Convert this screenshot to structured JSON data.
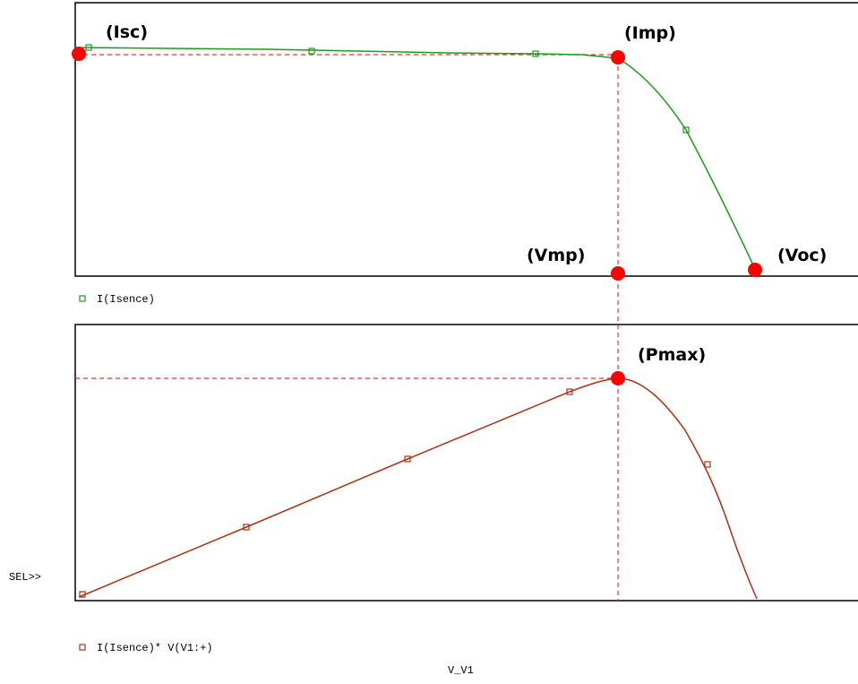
{
  "annotations": {
    "isc": "(Isc)",
    "imp": "(Imp)",
    "vmp": "(Vmp)",
    "voc": "(Voc)",
    "pmax": "(Pmax)"
  },
  "top_plot": {
    "legend": "I(Isence)"
  },
  "bottom_plot": {
    "legend": "I(Isence)* V(V1:+)"
  },
  "sel_marker": "SEL>>",
  "x_axis_label": "V_V1"
}
